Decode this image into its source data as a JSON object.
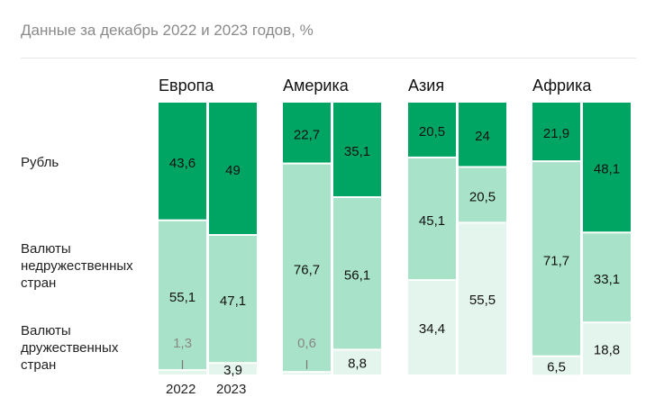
{
  "subtitle": "Данные за декабрь 2022 и 2023 годов, %",
  "chart_data": {
    "type": "bar",
    "stacked": true,
    "subtitle": "Данные за декабрь 2022 и 2023 годов, %",
    "groups": [
      "Европа",
      "Америка",
      "Азия",
      "Африка"
    ],
    "years": [
      "2022",
      "2023"
    ],
    "series": [
      {
        "name": "Рубль",
        "color": "#00a563",
        "values": [
          [
            43.6,
            49
          ],
          [
            22.7,
            35.1
          ],
          [
            20.5,
            24
          ],
          [
            21.9,
            48.1
          ]
        ]
      },
      {
        "name": "Валюты недружественных стран",
        "color": "#a8e2c8",
        "values": [
          [
            55.1,
            47.1
          ],
          [
            76.7,
            56.1
          ],
          [
            45.1,
            20.5
          ],
          [
            71.7,
            33.1
          ]
        ]
      },
      {
        "name": "Валюты дружественных стран",
        "color": "#e3f5ec",
        "values": [
          [
            1.3,
            3.9
          ],
          [
            0.6,
            8.8
          ],
          [
            34.4,
            55.5
          ],
          [
            6.5,
            18.8
          ]
        ]
      }
    ],
    "labels": {
      "series": [
        "Рубль",
        "Валюты недружественных стран",
        "Валюты дружественных стран"
      ],
      "rub": [
        [
          "43,6",
          "49"
        ],
        [
          "22,7",
          "35,1"
        ],
        [
          "20,5",
          "24"
        ],
        [
          "21,9",
          "48,1"
        ]
      ],
      "unfriendly": [
        [
          "55,1",
          "47,1"
        ],
        [
          "76,7",
          "56,1"
        ],
        [
          "45,1",
          "20,5"
        ],
        [
          "71,7",
          "33,1"
        ]
      ],
      "friendly": [
        [
          "1,3",
          "3,9"
        ],
        [
          "0,6",
          "8,8"
        ],
        [
          "34,4",
          "55,5"
        ],
        [
          "6,5",
          "18,8"
        ]
      ]
    },
    "ylim": [
      0,
      100
    ]
  }
}
